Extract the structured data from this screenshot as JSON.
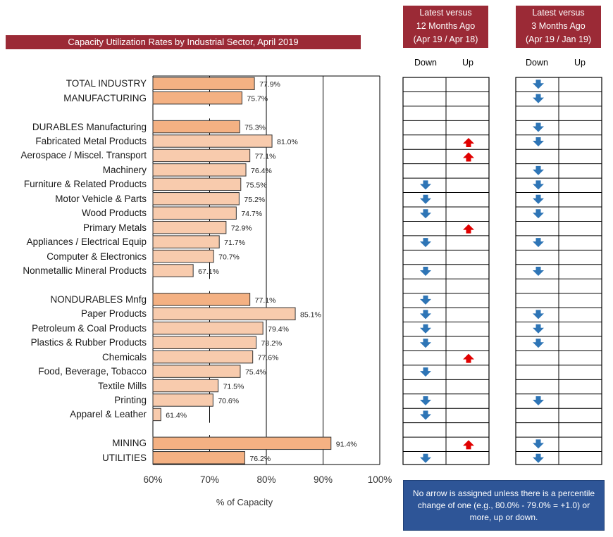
{
  "chart_data": {
    "type": "bar",
    "orientation": "horizontal",
    "title": "Capacity Utilization Rates by Industrial Sector, April 2019",
    "xlabel": "% of Capacity",
    "xlim": [
      60,
      100
    ],
    "x_ticks": [
      "60%",
      "70%",
      "80%",
      "90%",
      "100%"
    ],
    "grid": "vertical",
    "rows": [
      {
        "label": "TOTAL INDUSTRY",
        "value": 77.9,
        "value_label": "77.9%",
        "group": "aggregate",
        "yoy": "",
        "q3": "down"
      },
      {
        "label": "MANUFACTURING",
        "value": 75.7,
        "value_label": "75.7%",
        "group": "aggregate",
        "yoy": "",
        "q3": "down"
      },
      {
        "label": "",
        "value": null,
        "value_label": "",
        "group": "spacer",
        "yoy": "",
        "q3": ""
      },
      {
        "label": "DURABLES Manufacturing",
        "value": 75.3,
        "value_label": "75.3%",
        "group": "aggregate",
        "yoy": "",
        "q3": "down"
      },
      {
        "label": "Fabricated Metal Products",
        "value": 81.0,
        "value_label": "81.0%",
        "group": "sector",
        "yoy": "up",
        "q3": "down"
      },
      {
        "label": "Aerospace / Miscel. Transport",
        "value": 77.1,
        "value_label": "77.1%",
        "group": "sector",
        "yoy": "up",
        "q3": ""
      },
      {
        "label": "Machinery",
        "value": 76.4,
        "value_label": "76.4%",
        "group": "sector",
        "yoy": "",
        "q3": "down"
      },
      {
        "label": "Furniture & Related Products",
        "value": 75.5,
        "value_label": "75.5%",
        "group": "sector",
        "yoy": "down",
        "q3": "down"
      },
      {
        "label": "Motor Vehicle & Parts",
        "value": 75.2,
        "value_label": "75.2%",
        "group": "sector",
        "yoy": "down",
        "q3": "down"
      },
      {
        "label": "Wood Products",
        "value": 74.7,
        "value_label": "74.7%",
        "group": "sector",
        "yoy": "down",
        "q3": "down"
      },
      {
        "label": "Primary Metals",
        "value": 72.9,
        "value_label": "72.9%",
        "group": "sector",
        "yoy": "up",
        "q3": ""
      },
      {
        "label": "Appliances / Electrical Equip",
        "value": 71.7,
        "value_label": "71.7%",
        "group": "sector",
        "yoy": "down",
        "q3": "down"
      },
      {
        "label": "Computer & Electronics",
        "value": 70.7,
        "value_label": "70.7%",
        "group": "sector",
        "yoy": "",
        "q3": ""
      },
      {
        "label": "Nonmetallic Mineral Products",
        "value": 67.1,
        "value_label": "67.1%",
        "group": "sector",
        "yoy": "down",
        "q3": "down"
      },
      {
        "label": "",
        "value": null,
        "value_label": "",
        "group": "spacer",
        "yoy": "",
        "q3": ""
      },
      {
        "label": "NONDURABLES Mnfg",
        "value": 77.1,
        "value_label": "77.1%",
        "group": "aggregate",
        "yoy": "down",
        "q3": ""
      },
      {
        "label": "Paper Products",
        "value": 85.1,
        "value_label": "85.1%",
        "group": "sector",
        "yoy": "down",
        "q3": "down"
      },
      {
        "label": "Petroleum & Coal Products",
        "value": 79.4,
        "value_label": "79.4%",
        "group": "sector",
        "yoy": "down",
        "q3": "down"
      },
      {
        "label": "Plastics & Rubber Products",
        "value": 78.2,
        "value_label": "78.2%",
        "group": "sector",
        "yoy": "down",
        "q3": "down"
      },
      {
        "label": "Chemicals",
        "value": 77.6,
        "value_label": "77.6%",
        "group": "sector",
        "yoy": "up",
        "q3": ""
      },
      {
        "label": "Food, Beverage, Tobacco",
        "value": 75.4,
        "value_label": "75.4%",
        "group": "sector",
        "yoy": "down",
        "q3": ""
      },
      {
        "label": "Textile Mills",
        "value": 71.5,
        "value_label": "71.5%",
        "group": "sector",
        "yoy": "",
        "q3": ""
      },
      {
        "label": "Printing",
        "value": 70.6,
        "value_label": "70.6%",
        "group": "sector",
        "yoy": "down",
        "q3": "down"
      },
      {
        "label": "Apparel & Leather",
        "value": 61.4,
        "value_label": "61.4%",
        "group": "sector",
        "yoy": "down",
        "q3": ""
      },
      {
        "label": "",
        "value": null,
        "value_label": "",
        "group": "spacer",
        "yoy": "",
        "q3": ""
      },
      {
        "label": "MINING",
        "value": 91.4,
        "value_label": "91.4%",
        "group": "aggregate",
        "yoy": "up",
        "q3": "down"
      },
      {
        "label": "UTILITIES",
        "value": 76.2,
        "value_label": "76.2%",
        "group": "aggregate",
        "yoy": "down",
        "q3": "down"
      }
    ],
    "comparison_tables": [
      {
        "id": "yoy",
        "header_lines": [
          "Latest versus",
          "12 Months Ago",
          "(Apr 19 / Apr 18)"
        ],
        "columns": [
          "Down",
          "Up"
        ]
      },
      {
        "id": "q3",
        "header_lines": [
          "Latest versus",
          "3 Months  Ago",
          "(Apr 19 / Jan 19)"
        ],
        "columns": [
          "Down",
          "Up"
        ]
      }
    ],
    "note": "No arrow is assigned unless there is a percentile change of one (e.g., 80.0% - 79.0% = +1.0) or more, up or down."
  },
  "colors": {
    "title_bg": "#9b2a36",
    "aggregate_bar": "#f4b183",
    "sector_bar": "#f8cbad",
    "down_arrow": "#2e75b6",
    "up_arrow": "#e00000",
    "note_bg": "#2e5597"
  },
  "icons": {
    "down": "down-arrow-icon",
    "up": "up-arrow-icon"
  }
}
